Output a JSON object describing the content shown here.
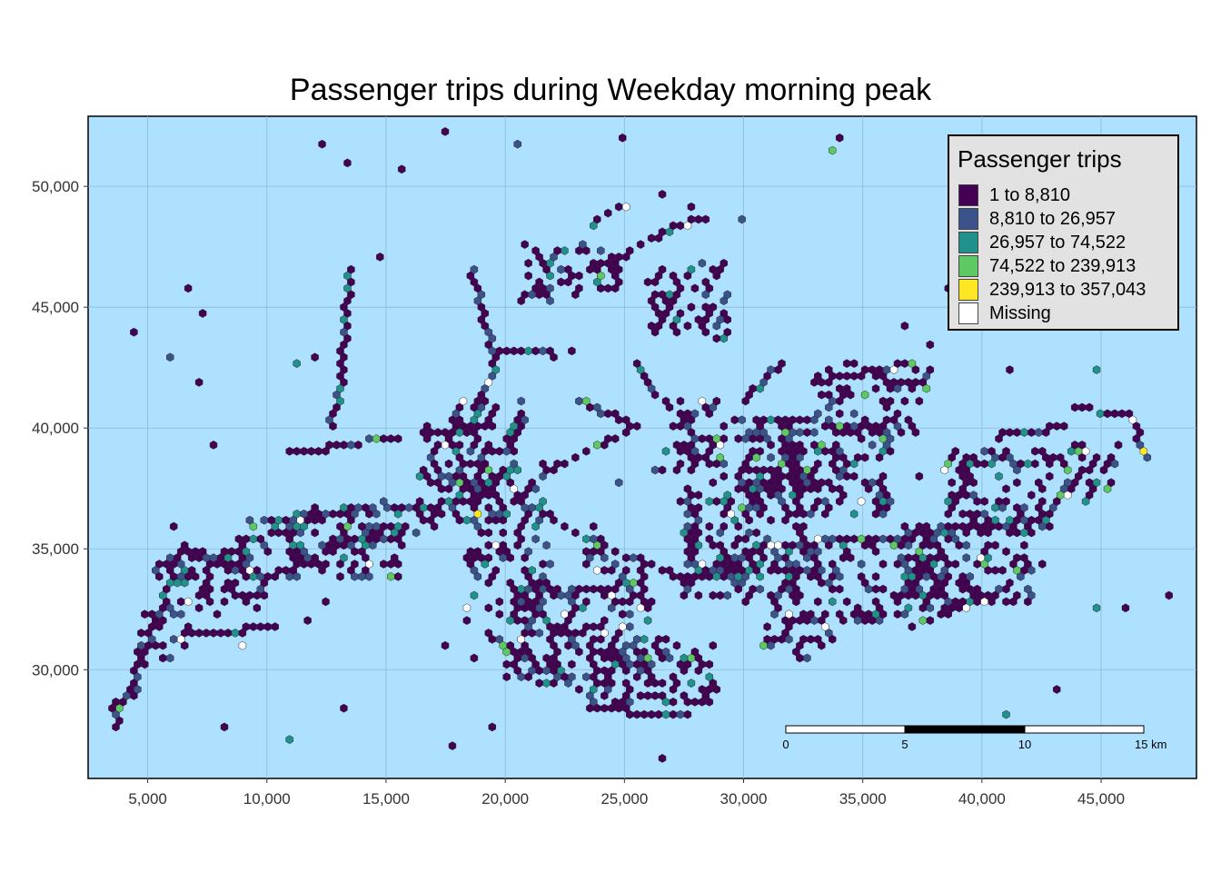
{
  "title": "Passenger trips during Weekday morning peak",
  "colors": {
    "water": "#aee0ff",
    "panel_border": "#000000",
    "grid": "#8fb8cf",
    "hex_stroke": "#2a2a2a"
  },
  "x_axis": {
    "range": [
      2500,
      49000
    ],
    "ticks": [
      5000,
      10000,
      15000,
      20000,
      25000,
      30000,
      35000,
      40000,
      45000
    ],
    "labels": [
      "5,000",
      "10,000",
      "15,000",
      "20,000",
      "25,000",
      "30,000",
      "35,000",
      "40,000",
      "45,000"
    ]
  },
  "y_axis": {
    "range": [
      25500,
      52900
    ],
    "ticks": [
      30000,
      35000,
      40000,
      45000,
      50000
    ],
    "labels": [
      "30,000",
      "35,000",
      "40,000",
      "45,000",
      "50,000"
    ]
  },
  "legend": {
    "title": "Passenger trips",
    "items": [
      {
        "label": "1 to 8,810",
        "color": "#440154"
      },
      {
        "label": "8,810 to 26,957",
        "color": "#3b528b"
      },
      {
        "label": "26,957 to 74,522",
        "color": "#21918c"
      },
      {
        "label": "74,522 to 239,913",
        "color": "#5ec962"
      },
      {
        "label": "239,913 to 357,043",
        "color": "#fde725"
      },
      {
        "label": "Missing",
        "color": "#ffffff"
      }
    ]
  },
  "scale_bar": {
    "labels": [
      "0",
      "5",
      "10",
      "15 km"
    ]
  }
}
